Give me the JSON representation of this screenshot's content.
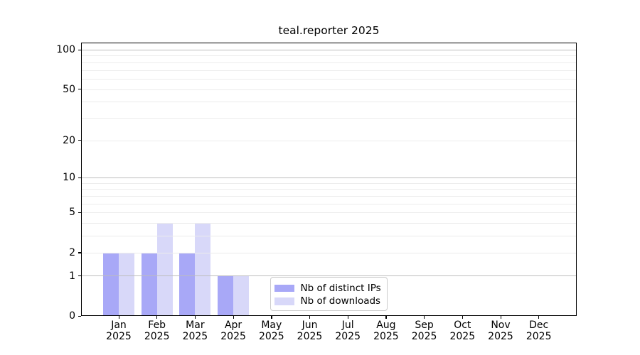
{
  "title": "teal.reporter 2025",
  "chart_data": {
    "type": "bar",
    "title": "teal.reporter 2025",
    "categories": [
      "Jan 2025",
      "Feb 2025",
      "Mar 2025",
      "Apr 2025",
      "May 2025",
      "Jun 2025",
      "Jul 2025",
      "Aug 2025",
      "Sep 2025",
      "Oct 2025",
      "Nov 2025",
      "Dec 2025"
    ],
    "series": [
      {
        "name": "Nb of distinct IPs",
        "color": "#a8a8f7",
        "values": [
          2,
          2,
          2,
          1,
          0,
          0,
          0,
          0,
          0,
          0,
          0,
          0
        ]
      },
      {
        "name": "Nb of downloads",
        "color": "#d8d8f9",
        "values": [
          2,
          4,
          4,
          1,
          0,
          0,
          0,
          0,
          0,
          0,
          0,
          0
        ]
      }
    ],
    "xlabel": "",
    "ylabel": "",
    "y_scale": "log1p",
    "ylim": [
      0,
      113
    ],
    "y_ticks": [
      0,
      1,
      2,
      5,
      10,
      20,
      50,
      100
    ],
    "grid": {
      "major_lines": [
        1,
        10,
        100
      ],
      "minor_lines": [
        2,
        3,
        4,
        5,
        6,
        7,
        8,
        9,
        20,
        30,
        40,
        50,
        60,
        70,
        80,
        90
      ],
      "major_color": "#bdbdbd",
      "minor_color": "#ececec"
    },
    "legend": {
      "position": "lower-center-inside"
    },
    "axis_color": "#000000",
    "background": "#ffffff"
  }
}
